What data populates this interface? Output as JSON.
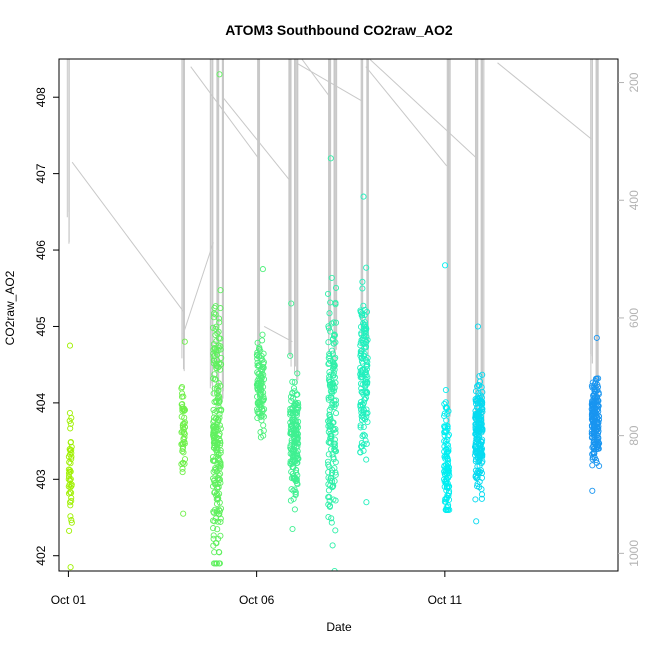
{
  "chart_data": {
    "type": "scatter",
    "title": "ATOM3 Southbound CO2raw_AO2",
    "xlabel": "Date",
    "ylabel": "CO2raw_AO2",
    "x_unit": "day of October",
    "xlim": [
      0.75,
      15.6
    ],
    "ylim": [
      401.8,
      408.5
    ],
    "x_ticks": [
      {
        "value": 1,
        "label": "Oct 01"
      },
      {
        "value": 6,
        "label": "Oct 06"
      },
      {
        "value": 11,
        "label": "Oct 11"
      }
    ],
    "y_ticks": [
      402,
      403,
      404,
      405,
      406,
      407,
      408
    ],
    "right_axis": {
      "label": "",
      "color": "#b3b3b3",
      "reversed": true,
      "lim": [
        1030,
        160
      ],
      "ticks": [
        200,
        400,
        600,
        800,
        1000
      ]
    },
    "grid": false,
    "legend": "none",
    "point_color_scale": {
      "start_day": 1,
      "end_day": 15.2,
      "start_color": "#a0f000",
      "mid_color": "#00f0f0",
      "end_color": "#1a90f0"
    },
    "line_color": "#c8c8c8",
    "clusters": [
      {
        "x": 1.05,
        "width": 0.08,
        "ymin": 401.85,
        "ymax": 404.75,
        "count": 45,
        "center": 403.1
      },
      {
        "x": 4.05,
        "width": 0.1,
        "ymin": 402.55,
        "ymax": 404.8,
        "count": 50,
        "center": 403.6
      },
      {
        "x": 4.95,
        "width": 0.22,
        "ymin": 401.9,
        "ymax": 408.3,
        "count": 230,
        "center": 403.6
      },
      {
        "x": 6.1,
        "width": 0.2,
        "ymin": 403.55,
        "ymax": 405.75,
        "count": 110,
        "center": 404.2
      },
      {
        "x": 7.0,
        "width": 0.22,
        "ymin": 402.35,
        "ymax": 405.3,
        "count": 170,
        "center": 403.5
      },
      {
        "x": 8.0,
        "width": 0.22,
        "ymin": 401.8,
        "ymax": 407.2,
        "count": 160,
        "center": 403.9
      },
      {
        "x": 8.85,
        "width": 0.2,
        "ymin": 402.7,
        "ymax": 406.7,
        "count": 150,
        "center": 404.4
      },
      {
        "x": 11.05,
        "width": 0.14,
        "ymin": 402.6,
        "ymax": 405.8,
        "count": 110,
        "center": 403.2
      },
      {
        "x": 11.9,
        "width": 0.2,
        "ymin": 402.45,
        "ymax": 405.0,
        "count": 190,
        "center": 403.6
      },
      {
        "x": 15.0,
        "width": 0.2,
        "ymin": 402.85,
        "ymax": 404.85,
        "count": 180,
        "center": 403.8
      }
    ],
    "line_bands": [
      {
        "x": 1.0,
        "ymin": 405.9,
        "ymax": 408.5
      },
      {
        "x": 4.05,
        "ymin": 404.3,
        "ymax": 408.5
      },
      {
        "x": 4.8,
        "ymin": 404.0,
        "ymax": 408.5
      },
      {
        "x": 4.95,
        "ymin": 403.8,
        "ymax": 408.5
      },
      {
        "x": 5.1,
        "ymin": 404.0,
        "ymax": 408.5
      },
      {
        "x": 6.05,
        "ymin": 404.5,
        "ymax": 408.5
      },
      {
        "x": 6.9,
        "ymin": 404.3,
        "ymax": 408.5
      },
      {
        "x": 7.05,
        "ymin": 404.0,
        "ymax": 408.5
      },
      {
        "x": 7.95,
        "ymin": 404.5,
        "ymax": 408.5
      },
      {
        "x": 8.1,
        "ymin": 404.2,
        "ymax": 408.5
      },
      {
        "x": 8.8,
        "ymin": 404.6,
        "ymax": 408.5
      },
      {
        "x": 8.95,
        "ymin": 404.5,
        "ymax": 408.5
      },
      {
        "x": 11.1,
        "ymin": 403.4,
        "ymax": 408.5
      },
      {
        "x": 11.85,
        "ymin": 403.6,
        "ymax": 408.5
      },
      {
        "x": 12.0,
        "ymin": 403.4,
        "ymax": 408.5
      },
      {
        "x": 14.9,
        "ymin": 404.2,
        "ymax": 408.5
      },
      {
        "x": 15.05,
        "ymin": 404.0,
        "ymax": 408.5
      }
    ],
    "diagonals": [
      {
        "x": [
          1.1,
          4.05
        ],
        "y": [
          407.15,
          405.2
        ]
      },
      {
        "x": [
          4.05,
          4.85
        ],
        "y": [
          404.9,
          406.1
        ]
      },
      {
        "x": [
          4.25,
          6.05
        ],
        "y": [
          408.4,
          407.2
        ]
      },
      {
        "x": [
          5.1,
          6.9
        ],
        "y": [
          408.0,
          406.9
        ]
      },
      {
        "x": [
          6.2,
          6.95
        ],
        "y": [
          405.0,
          404.8
        ]
      },
      {
        "x": [
          7.2,
          7.95
        ],
        "y": [
          408.5,
          408.0
        ]
      },
      {
        "x": [
          7.05,
          8.8
        ],
        "y": [
          408.45,
          407.95
        ]
      },
      {
        "x": [
          8.9,
          11.05
        ],
        "y": [
          408.4,
          407.1
        ]
      },
      {
        "x": [
          9.0,
          11.85
        ],
        "y": [
          408.5,
          407.2
        ]
      },
      {
        "x": [
          12.4,
          14.9
        ],
        "y": [
          408.45,
          407.45
        ]
      }
    ]
  }
}
